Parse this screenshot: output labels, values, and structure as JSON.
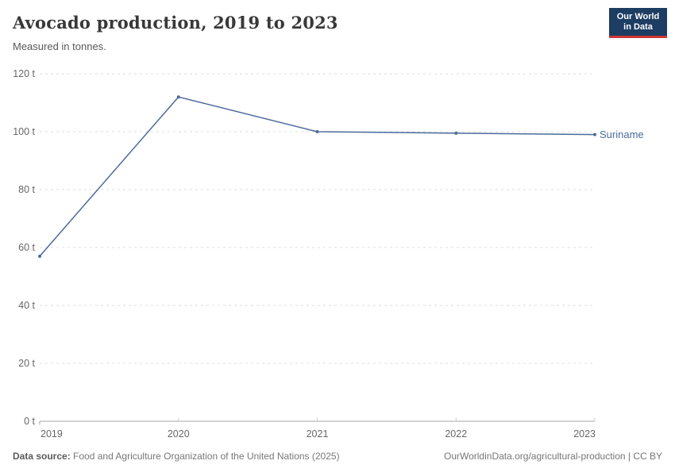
{
  "header": {
    "title": "Avocado production, 2019 to 2023",
    "subtitle": "Measured in tonnes.",
    "logo": {
      "line1": "Our World",
      "line2": "in Data"
    }
  },
  "chart_data": {
    "type": "line",
    "title": "Avocado production, 2019 to 2023",
    "subtitle": "Measured in tonnes.",
    "x": [
      2019,
      2020,
      2021,
      2022,
      2023
    ],
    "series": [
      {
        "name": "Suriname",
        "values": [
          57,
          112,
          100,
          99.5,
          99
        ],
        "color": "#4c6a9c"
      }
    ],
    "xlabel": "",
    "ylabel": "tonnes",
    "ylim": [
      0,
      120
    ],
    "yticks": [
      0,
      20,
      40,
      60,
      80,
      100,
      120
    ],
    "ytick_suffix": " t",
    "grid": true,
    "legend_position": "end-of-line"
  },
  "footer": {
    "source_label": "Data source:",
    "source_text": " Food and Agriculture Organization of the United Nations (2025)",
    "citation": "OurWorldinData.org/agricultural-production | CC BY"
  },
  "colors": {
    "line": "#4c6a9c",
    "grid": "#dcdcdc",
    "axis": "#a5a5a5",
    "tick_label": "#666666",
    "logo_bg": "#1d3d63",
    "logo_accent": "#cd3731"
  }
}
